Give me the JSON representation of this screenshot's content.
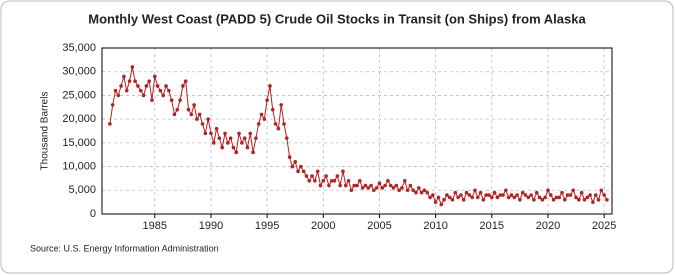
{
  "chart_data": {
    "type": "line",
    "title": "Monthly West Coast (PADD 5) Crude Oil Stocks in Transit (on Ships) from Alaska",
    "ylabel": "Thousand Barrels",
    "source": "Source: U.S. Energy Information Administration",
    "grid": true,
    "x": [
      1981,
      1981.25,
      1981.5,
      1981.75,
      1982,
      1982.25,
      1982.5,
      1982.75,
      1983,
      1983.25,
      1983.5,
      1983.75,
      1984,
      1984.25,
      1984.5,
      1984.75,
      1985,
      1985.25,
      1985.5,
      1985.75,
      1986,
      1986.25,
      1986.5,
      1986.75,
      1987,
      1987.25,
      1987.5,
      1987.75,
      1988,
      1988.25,
      1988.5,
      1988.75,
      1989,
      1989.25,
      1989.5,
      1989.75,
      1990,
      1990.25,
      1990.5,
      1990.75,
      1991,
      1991.25,
      1991.5,
      1991.75,
      1992,
      1992.25,
      1992.5,
      1992.75,
      1993,
      1993.25,
      1993.5,
      1993.75,
      1994,
      1994.25,
      1994.5,
      1994.75,
      1995,
      1995.25,
      1995.5,
      1995.75,
      1996,
      1996.25,
      1996.5,
      1996.75,
      1997,
      1997.25,
      1997.5,
      1997.75,
      1998,
      1998.25,
      1998.5,
      1998.75,
      1999,
      1999.25,
      1999.5,
      1999.75,
      2000,
      2000.25,
      2000.5,
      2000.75,
      2001,
      2001.25,
      2001.5,
      2001.75,
      2002,
      2002.25,
      2002.5,
      2002.75,
      2003,
      2003.25,
      2003.5,
      2003.75,
      2004,
      2004.25,
      2004.5,
      2004.75,
      2005,
      2005.25,
      2005.5,
      2005.75,
      2006,
      2006.25,
      2006.5,
      2006.75,
      2007,
      2007.25,
      2007.5,
      2007.75,
      2008,
      2008.25,
      2008.5,
      2008.75,
      2009,
      2009.25,
      2009.5,
      2009.75,
      2010,
      2010.25,
      2010.5,
      2010.75,
      2011,
      2011.25,
      2011.5,
      2011.75,
      2012,
      2012.25,
      2012.5,
      2012.75,
      2013,
      2013.25,
      2013.5,
      2013.75,
      2014,
      2014.25,
      2014.5,
      2014.75,
      2015,
      2015.25,
      2015.5,
      2015.75,
      2016,
      2016.25,
      2016.5,
      2016.75,
      2017,
      2017.25,
      2017.5,
      2017.75,
      2018,
      2018.25,
      2018.5,
      2018.75,
      2019,
      2019.25,
      2019.5,
      2019.75,
      2020,
      2020.25,
      2020.5,
      2020.75,
      2021,
      2021.25,
      2021.5,
      2021.75,
      2022,
      2022.25,
      2022.5,
      2022.75,
      2023,
      2023.25,
      2023.5,
      2023.75,
      2024,
      2024.25,
      2024.5,
      2024.75,
      2025,
      2025.25
    ],
    "series": [
      {
        "name": "Crude Oil Stocks in Transit",
        "color": "#b22222",
        "values": [
          19000,
          23000,
          26000,
          25000,
          27000,
          29000,
          26000,
          28000,
          31000,
          28000,
          27000,
          26000,
          25000,
          27000,
          28000,
          24000,
          29000,
          27000,
          26000,
          25000,
          27000,
          26000,
          24000,
          21000,
          22000,
          24000,
          27000,
          28000,
          22000,
          21000,
          23000,
          20000,
          21000,
          19000,
          17000,
          20000,
          17000,
          15000,
          18000,
          16000,
          14000,
          17000,
          15000,
          16000,
          14000,
          13000,
          17000,
          15000,
          16000,
          14000,
          17000,
          13000,
          16000,
          19000,
          21000,
          20000,
          24000,
          27000,
          22000,
          19000,
          18000,
          23000,
          19000,
          16000,
          12000,
          10000,
          11000,
          9000,
          10000,
          9000,
          8000,
          7000,
          8000,
          7000,
          9000,
          6000,
          7000,
          8000,
          6000,
          7000,
          7000,
          8000,
          6000,
          9000,
          6000,
          7000,
          5000,
          6000,
          6000,
          7000,
          5500,
          6000,
          5500,
          6000,
          5000,
          5500,
          6500,
          5500,
          6000,
          7000,
          6000,
          5500,
          6000,
          5000,
          5500,
          7000,
          5000,
          6000,
          5000,
          4500,
          5500,
          4500,
          5000,
          4500,
          3500,
          4000,
          2500,
          3500,
          2000,
          3000,
          4000,
          3500,
          3000,
          4500,
          3500,
          4000,
          3000,
          4500,
          4000,
          3500,
          5000,
          3500,
          4500,
          3000,
          4000,
          4000,
          3500,
          4500,
          3500,
          4000,
          4000,
          5000,
          3500,
          4000,
          3500,
          4000,
          3000,
          4500,
          4000,
          3500,
          4000,
          3000,
          4500,
          3500,
          3000,
          3500,
          5000,
          4000,
          3000,
          3500,
          3500,
          4500,
          3000,
          4000,
          4000,
          5000,
          3500,
          3000,
          4500,
          3000,
          3500,
          4000,
          2500,
          4000,
          3000,
          5000,
          4000,
          3000
        ]
      }
    ],
    "xlim": [
      1980.3,
      2025.7
    ],
    "xticks": [
      1985,
      1990,
      1995,
      2000,
      2005,
      2010,
      2015,
      2020,
      2025
    ],
    "ylim": [
      0,
      35000
    ],
    "yticks": [
      0,
      {
        "value": 5000,
        "label": "5,000"
      },
      {
        "value": 10000,
        "label": "10,000"
      },
      {
        "value": 15000,
        "label": "15,000"
      },
      {
        "value": 20000,
        "label": "20,000"
      },
      {
        "value": 25000,
        "label": "25,000"
      },
      {
        "value": 30000,
        "label": "30,000"
      },
      {
        "value": 35000,
        "label": "35,000"
      }
    ]
  }
}
